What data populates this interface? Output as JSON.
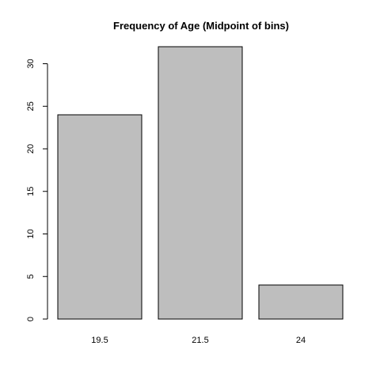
{
  "chart_data": {
    "type": "bar",
    "title": "Frequency of Age (Midpoint of bins)",
    "xlabel": "",
    "ylabel": "",
    "categories": [
      "19.5",
      "21.5",
      "24"
    ],
    "values": [
      24,
      32,
      4
    ],
    "ylim": [
      0,
      32
    ],
    "yticks": [
      0,
      5,
      10,
      15,
      20,
      25,
      30
    ],
    "bar_color": "#bebebe",
    "grid": false,
    "legend": "none"
  }
}
